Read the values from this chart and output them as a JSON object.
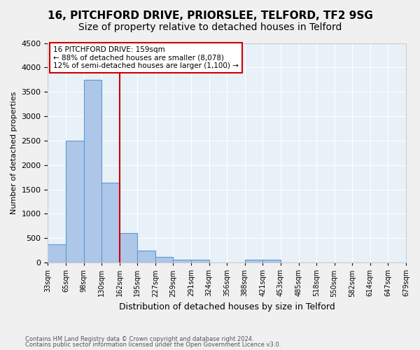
{
  "title1": "16, PITCHFORD DRIVE, PRIORSLEE, TELFORD, TF2 9SG",
  "title2": "Size of property relative to detached houses in Telford",
  "xlabel": "Distribution of detached houses by size in Telford",
  "ylabel": "Number of detached properties",
  "footnote1": "Contains HM Land Registry data © Crown copyright and database right 2024.",
  "footnote2": "Contains public sector information licensed under the Open Government Licence v3.0.",
  "bin_labels": [
    "33sqm",
    "65sqm",
    "98sqm",
    "130sqm",
    "162sqm",
    "195sqm",
    "227sqm",
    "259sqm",
    "291sqm",
    "324sqm",
    "356sqm",
    "388sqm",
    "421sqm",
    "453sqm",
    "485sqm",
    "518sqm",
    "550sqm",
    "582sqm",
    "614sqm",
    "647sqm",
    "679sqm"
  ],
  "bar_values": [
    375,
    2500,
    3750,
    1640,
    600,
    240,
    110,
    65,
    55,
    0,
    0,
    60,
    55,
    0,
    0,
    0,
    0,
    0,
    0,
    0
  ],
  "bar_color": "#aec6e8",
  "bar_edge_color": "#5b9bd5",
  "bg_color": "#e8f0f8",
  "grid_color": "#ffffff",
  "vline_color": "#cc0000",
  "annotation_text": "16 PITCHFORD DRIVE: 159sqm\n← 88% of detached houses are smaller (8,078)\n12% of semi-detached houses are larger (1,100) →",
  "annotation_box_color": "#cc0000",
  "ylim": [
    0,
    4500
  ],
  "yticks": [
    0,
    500,
    1000,
    1500,
    2000,
    2500,
    3000,
    3500,
    4000,
    4500
  ],
  "title1_fontsize": 11,
  "title2_fontsize": 10
}
